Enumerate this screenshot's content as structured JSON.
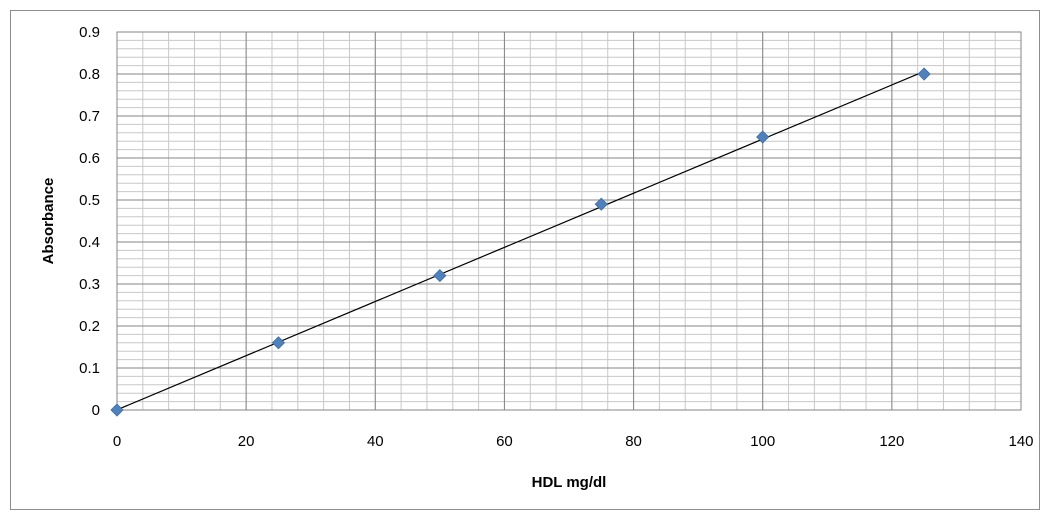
{
  "chart_data": {
    "type": "scatter",
    "title": "",
    "xlabel": "HDL mg/dl",
    "ylabel": "Absorbance",
    "xlim": [
      0,
      140
    ],
    "ylim": [
      0,
      0.9
    ],
    "x_ticks": [
      "0",
      "20",
      "40",
      "60",
      "80",
      "100",
      "120",
      "140"
    ],
    "y_ticks": [
      "0",
      "0.1",
      "0.2",
      "0.3",
      "0.4",
      "0.5",
      "0.6",
      "0.7",
      "0.8",
      "0.9"
    ],
    "grid": true,
    "legend": "none",
    "series": [
      {
        "x": [
          0,
          25,
          50,
          75,
          100,
          125
        ],
        "y": [
          0,
          0.16,
          0.32,
          0.49,
          0.65,
          0.8
        ],
        "marker": "diamond",
        "color": "#4f81bd",
        "trendline": "linear"
      }
    ]
  }
}
